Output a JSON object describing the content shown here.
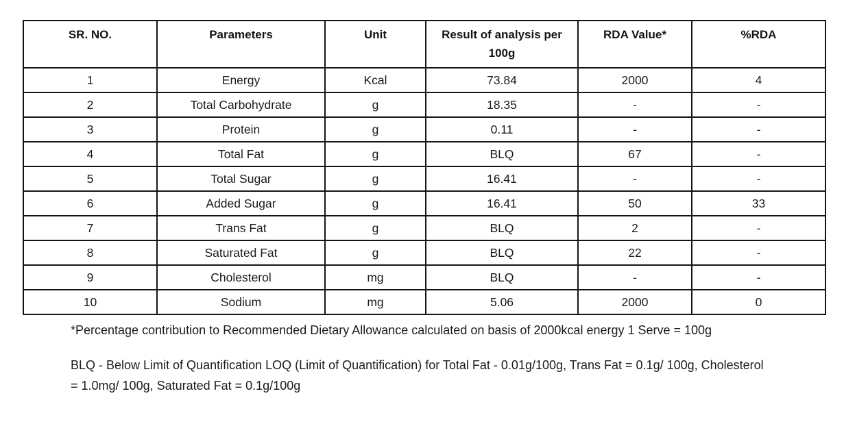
{
  "table": {
    "headers": {
      "sr_no": "SR. NO.",
      "parameters": "Parameters",
      "unit": "Unit",
      "result": "Result of analysis per 100g",
      "rda_value": "RDA Value*",
      "pct_rda": "%RDA"
    },
    "rows": [
      {
        "sr": "1",
        "parameter": "Energy",
        "unit": "Kcal",
        "result": "73.84",
        "rda_value": "2000",
        "pct_rda": "4"
      },
      {
        "sr": "2",
        "parameter": "Total Carbohydrate",
        "unit": "g",
        "result": "18.35",
        "rda_value": "-",
        "pct_rda": "-"
      },
      {
        "sr": "3",
        "parameter": "Protein",
        "unit": "g",
        "result": "0.11",
        "rda_value": "-",
        "pct_rda": "-"
      },
      {
        "sr": "4",
        "parameter": "Total Fat",
        "unit": "g",
        "result": "BLQ",
        "rda_value": "67",
        "pct_rda": "-"
      },
      {
        "sr": "5",
        "parameter": "Total Sugar",
        "unit": "g",
        "result": "16.41",
        "rda_value": "-",
        "pct_rda": "-"
      },
      {
        "sr": "6",
        "parameter": "Added Sugar",
        "unit": "g",
        "result": "16.41",
        "rda_value": "50",
        "pct_rda": "33"
      },
      {
        "sr": "7",
        "parameter": "Trans Fat",
        "unit": "g",
        "result": "BLQ",
        "rda_value": "2",
        "pct_rda": "-"
      },
      {
        "sr": "8",
        "parameter": "Saturated Fat",
        "unit": "g",
        "result": "BLQ",
        "rda_value": "22",
        "pct_rda": "-"
      },
      {
        "sr": "9",
        "parameter": "Cholesterol",
        "unit": "mg",
        "result": "BLQ",
        "rda_value": "-",
        "pct_rda": "-"
      },
      {
        "sr": "10",
        "parameter": "Sodium",
        "unit": "mg",
        "result": "5.06",
        "rda_value": "2000",
        "pct_rda": "0"
      }
    ]
  },
  "footnotes": {
    "rda_note": "*Percentage contribution to Recommended Dietary Allowance calculated on basis of 2000kcal energy 1 Serve = 100g",
    "blq_note": "BLQ - Below Limit of Quantification LOQ (Limit of Quantification) for Total Fat - 0.01g/100g, Trans Fat = 0.1g/ 100g, Cholesterol = 1.0mg/ 100g, Saturated Fat = 0.1g/100g"
  }
}
